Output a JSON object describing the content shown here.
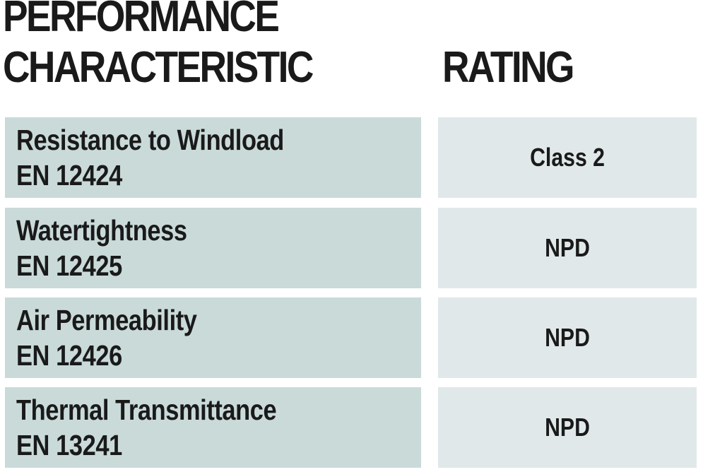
{
  "header": {
    "characteristic_line1": "PERFORMANCE",
    "characteristic_line2": "CHARACTERISTIC",
    "rating": "RATING"
  },
  "rows": [
    {
      "name": "Resistance to Windload",
      "standard": "EN 12424",
      "rating": "Class 2"
    },
    {
      "name": "Watertightness",
      "standard": "EN 12425",
      "rating": "NPD"
    },
    {
      "name": "Air Permeability",
      "standard": "EN 12426",
      "rating": "NPD"
    },
    {
      "name": "Thermal Transmittance",
      "standard": "EN 13241",
      "rating": "NPD"
    }
  ],
  "colors": {
    "characteristic_cell": "#c9dad9",
    "rating_cell": "#e1e8ea",
    "text": "#1a1a1a"
  }
}
